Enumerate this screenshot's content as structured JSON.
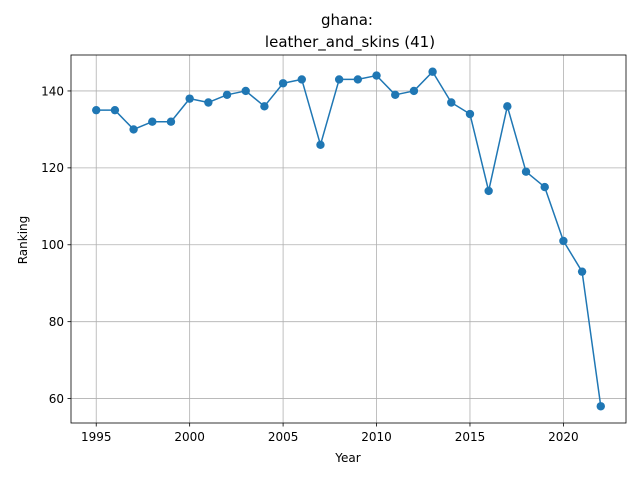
{
  "chart_data": {
    "type": "line",
    "title_line1": "ghana:",
    "title_line2": "leather_and_skins (41)",
    "xlabel": "Year",
    "ylabel": "Ranking",
    "xlim": [
      1993.65,
      2023.35
    ],
    "ylim": [
      53.65,
      149.35
    ],
    "xticks": [
      1995,
      2000,
      2005,
      2010,
      2015,
      2020
    ],
    "yticks": [
      60,
      80,
      100,
      120,
      140
    ],
    "grid": true,
    "color": "#1f77b4",
    "x": [
      1995,
      1996,
      1997,
      1998,
      1999,
      2000,
      2001,
      2002,
      2003,
      2004,
      2005,
      2006,
      2007,
      2008,
      2009,
      2010,
      2011,
      2012,
      2013,
      2014,
      2015,
      2016,
      2017,
      2018,
      2019,
      2020,
      2021,
      2022
    ],
    "y": [
      135,
      135,
      130,
      132,
      132,
      138,
      137,
      139,
      140,
      136,
      142,
      143,
      126,
      143,
      143,
      144,
      139,
      140,
      145,
      137,
      134,
      114,
      136,
      119,
      115,
      101,
      93,
      58
    ]
  }
}
